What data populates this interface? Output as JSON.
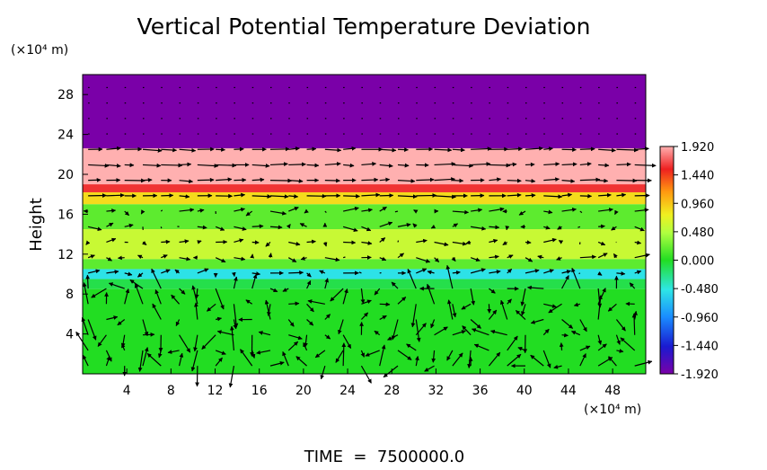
{
  "chart_data": {
    "type": "heatmap",
    "title": "Vertical Potential Temperature Deviation",
    "xlabel": "",
    "x_unit": "(×10⁴ m)",
    "ylabel": "Height",
    "y_unit": "(×10⁴ m)",
    "xlim": [
      0,
      51
    ],
    "ylim": [
      0,
      30
    ],
    "x_ticks": [
      "4",
      "8",
      "12",
      "16",
      "20",
      "24",
      "28",
      "32",
      "36",
      "40",
      "44",
      "48"
    ],
    "y_ticks": [
      "4",
      "8",
      "12",
      "16",
      "20",
      "24",
      "28"
    ],
    "colorbar": {
      "min": -1.92,
      "max": 1.92,
      "tick_labels": [
        "1.920",
        "1.440",
        "0.960",
        "0.480",
        "0.000",
        "-0.480",
        "-0.960",
        "-1.440",
        "-1.920"
      ]
    },
    "layers": [
      {
        "y_from": 22.6,
        "y_to": 30.0,
        "value": -1.92
      },
      {
        "y_from": 19.0,
        "y_to": 22.6,
        "value": 1.92
      },
      {
        "y_from": 18.2,
        "y_to": 19.0,
        "value": 1.6
      },
      {
        "y_from": 17.0,
        "y_to": 18.2,
        "value": 0.9
      },
      {
        "y_from": 14.5,
        "y_to": 17.0,
        "value": 0.2
      },
      {
        "y_from": 11.5,
        "y_to": 14.5,
        "value": 0.6
      },
      {
        "y_from": 10.5,
        "y_to": 11.5,
        "value": 0.2
      },
      {
        "y_from": 9.5,
        "y_to": 10.5,
        "value": -0.5
      },
      {
        "y_from": 8.5,
        "y_to": 9.5,
        "value": -0.1
      },
      {
        "y_from": 0.0,
        "y_to": 8.5,
        "value": 0.0
      }
    ],
    "vectors": "wind vector field overlay",
    "footer": "TIME  =  7500000.0"
  }
}
